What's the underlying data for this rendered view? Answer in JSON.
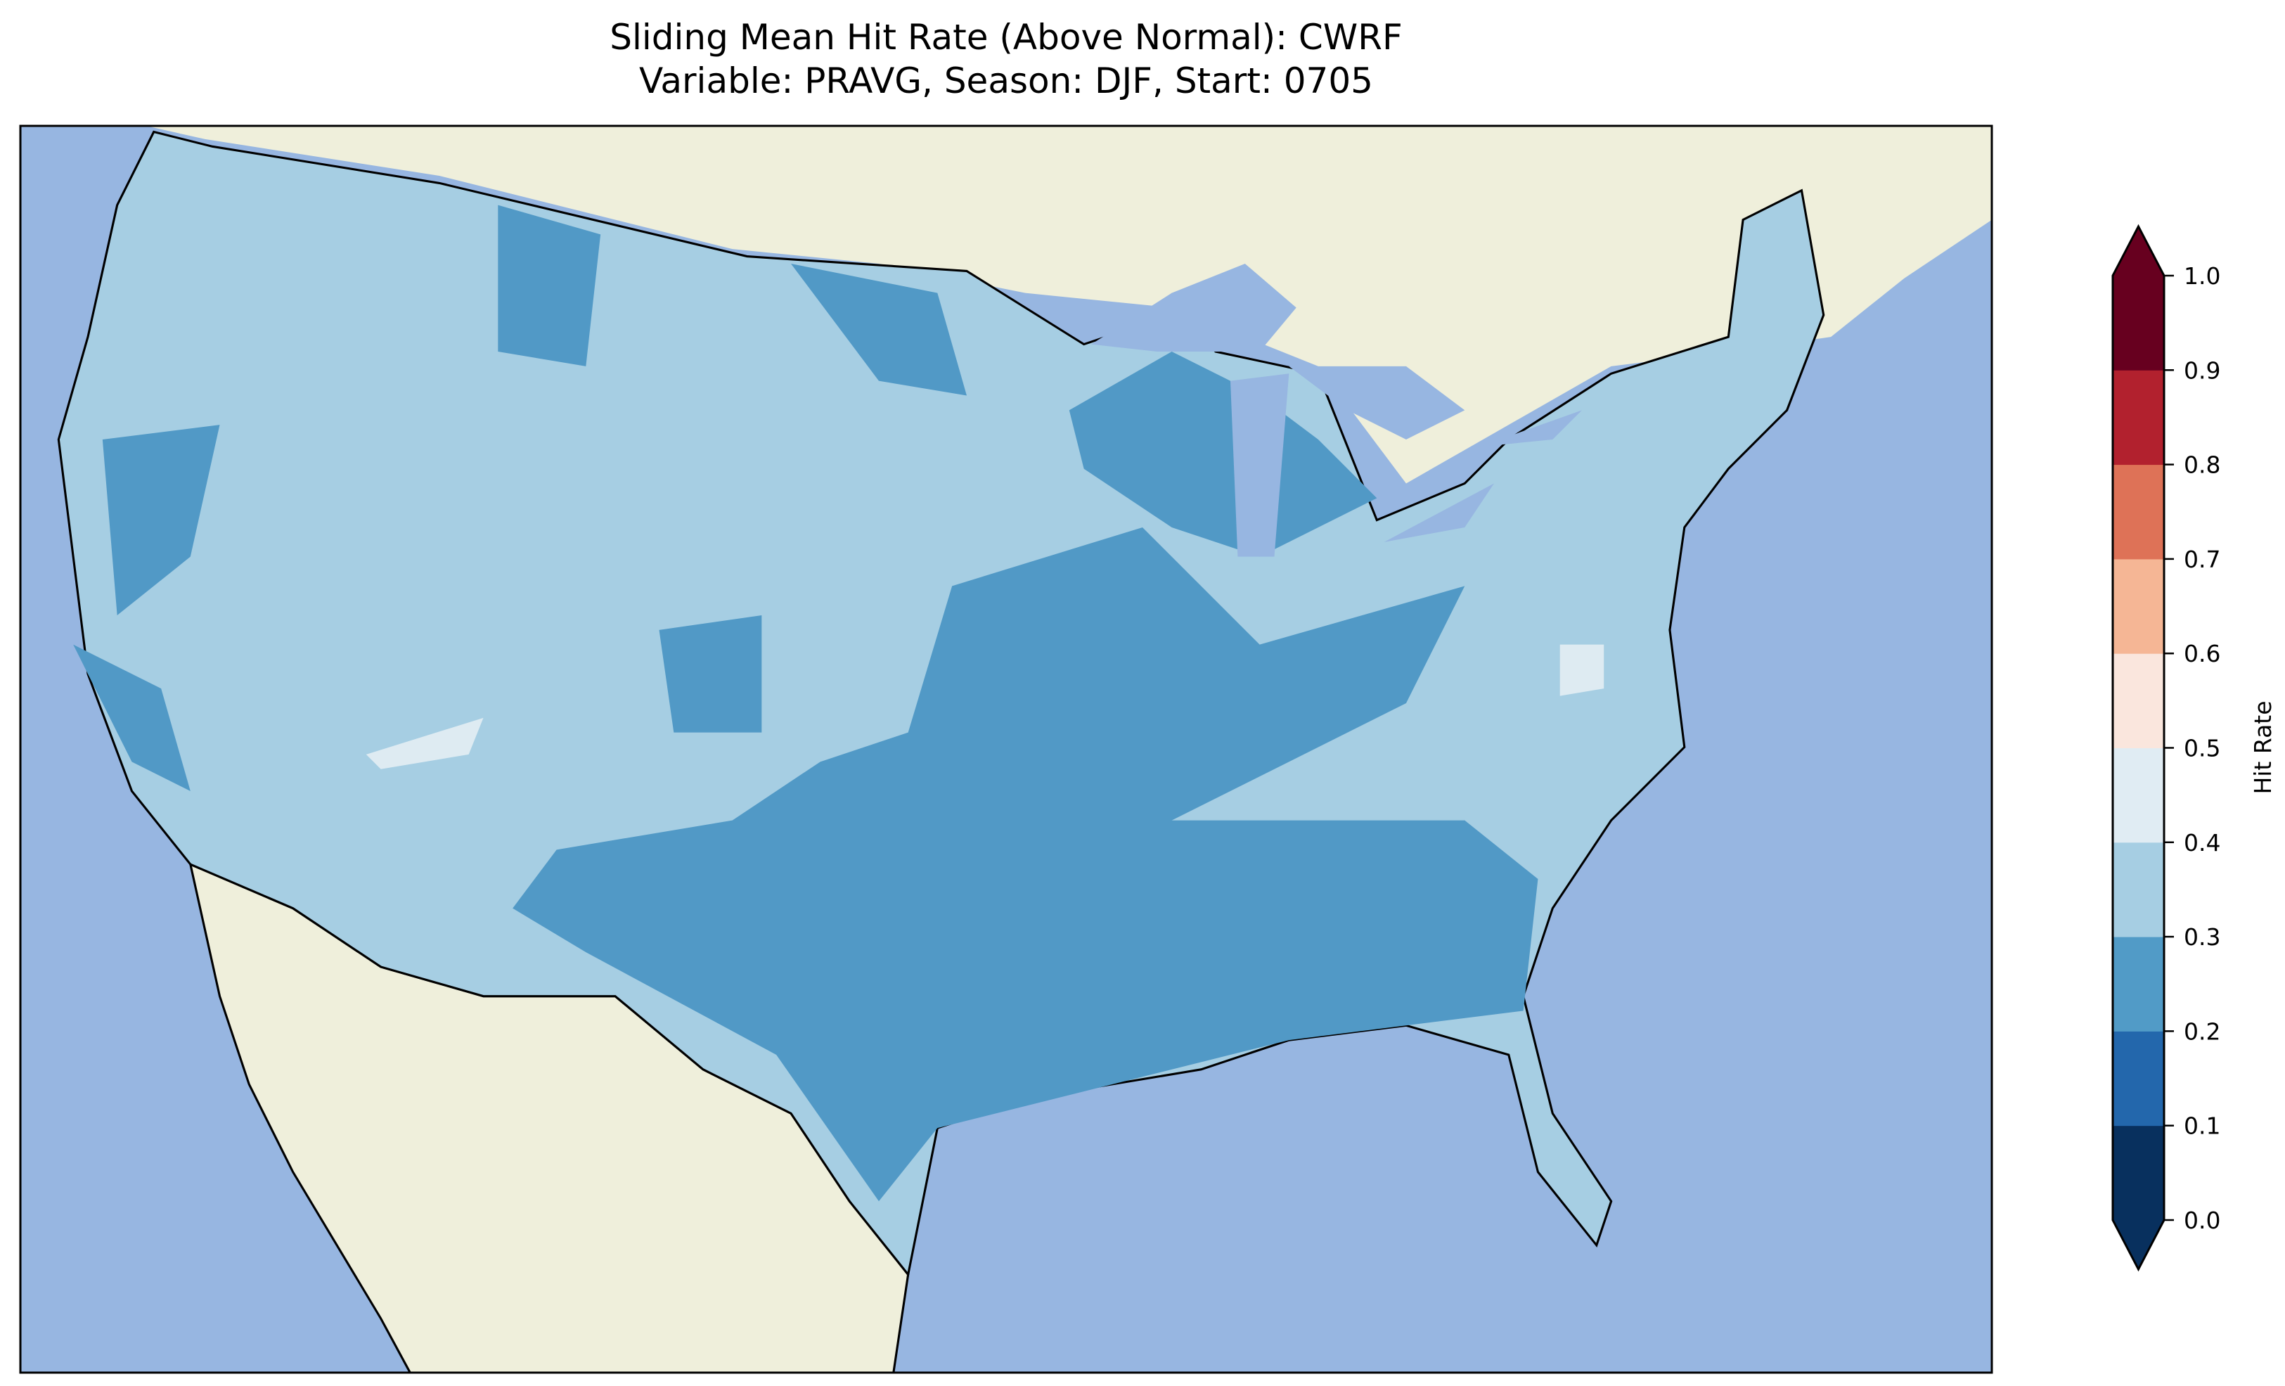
{
  "title": {
    "line1": "Sliding Mean Hit Rate (Above Normal): CWRF",
    "line2": "Variable: PRAVG, Season: DJF, Start: 0705"
  },
  "colors": {
    "ocean": "#97b6e1",
    "land": "#efefdb",
    "field_0_2_0_3": "#5199c6",
    "field_0_3_0_4": "#a6cee3",
    "field_0_4_0_5": "#deebf2"
  },
  "chart_data": {
    "type": "heatmap",
    "title": "Sliding Mean Hit Rate (Above Normal): CWRF / Variable: PRAVG, Season: DJF, Start: 0705",
    "region": "Contiguous United States",
    "dominant_range": [
      0.2,
      0.4
    ],
    "colorbar": {
      "label": "Hit Rate",
      "extend": "both",
      "ticks": [
        "0.0",
        "0.1",
        "0.2",
        "0.3",
        "0.4",
        "0.5",
        "0.6",
        "0.7",
        "0.8",
        "0.9",
        "1.0"
      ],
      "levels": [
        0.0,
        0.1,
        0.2,
        0.3,
        0.4,
        0.5,
        0.6,
        0.7,
        0.8,
        0.9,
        1.0
      ],
      "colors": [
        "#08305e",
        "#2367ac",
        "#519bc7",
        "#a6cee3",
        "#e0ecf3",
        "#fae6dd",
        "#f5b695",
        "#de7257",
        "#b2212e",
        "#67001f"
      ]
    }
  }
}
